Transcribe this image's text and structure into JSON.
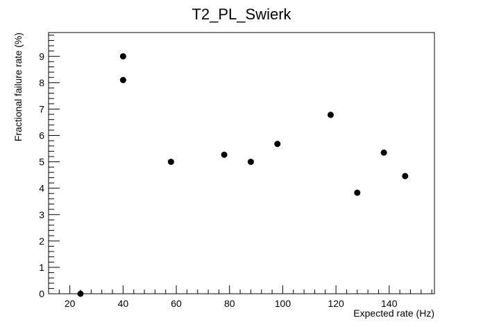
{
  "chart_data": {
    "type": "scatter",
    "title": "T2_PL_Swierk",
    "xlabel": "Expected rate (Hz)",
    "ylabel": "Fractional failure rate (%)",
    "xlim": [
      12,
      157
    ],
    "ylim": [
      0,
      9.9
    ],
    "x_ticks": [
      20,
      40,
      60,
      80,
      100,
      120,
      140
    ],
    "y_ticks": [
      0,
      1,
      2,
      3,
      4,
      5,
      6,
      7,
      8,
      9
    ],
    "grid": false,
    "legend": "none",
    "marker_color": "#000000",
    "points": [
      {
        "x": 24,
        "y": 0.0
      },
      {
        "x": 40,
        "y": 8.1
      },
      {
        "x": 40,
        "y": 9.0
      },
      {
        "x": 58,
        "y": 5.0
      },
      {
        "x": 78,
        "y": 5.27
      },
      {
        "x": 88,
        "y": 5.0
      },
      {
        "x": 98,
        "y": 5.68
      },
      {
        "x": 118,
        "y": 6.78
      },
      {
        "x": 128,
        "y": 3.83
      },
      {
        "x": 138,
        "y": 5.35
      },
      {
        "x": 146,
        "y": 4.46
      }
    ]
  }
}
